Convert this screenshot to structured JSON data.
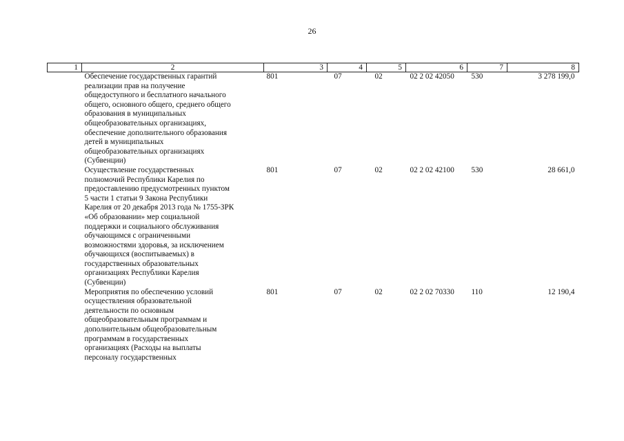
{
  "page": {
    "number": "26"
  },
  "table": {
    "headers": [
      "1",
      "2",
      "3",
      "4",
      "5",
      "6",
      "7",
      "8"
    ],
    "rows": [
      {
        "name_lines": [
          "Обеспечение государственных гарантий",
          "реализации прав на получение",
          "общедоступного и бесплатного начального",
          "общего, основного общего, среднего общего",
          "образования в муниципальных",
          "общеобразовательных организациях,",
          "обеспечение дополнительного образования",
          "детей в муниципальных",
          "общеобразовательных организациях",
          "(Субвенции)"
        ],
        "c3": "801",
        "c4": "07",
        "c5": "02",
        "c6": "02 2 02 42050",
        "c7": "530",
        "c8": "3 278 199,0"
      },
      {
        "name_lines": [
          "Осуществление государственных",
          "полномочий Республики Карелия по",
          "предоставлению предусмотренных пунктом",
          "5 части 1 статьи 9 Закона Республики",
          "Карелия от 20 декабря 2013 года № 1755-ЗРК",
          "«Об образовании» мер социальной",
          "поддержки и социального обслуживания",
          "обучающимся с ограниченными",
          "возможностями здоровья, за исключением",
          "обучающихся (воспитываемых) в",
          "государственных образовательных",
          "организациях Республики Карелия",
          "(Субвенции)"
        ],
        "c3": "801",
        "c4": "07",
        "c5": "02",
        "c6": "02 2 02 42100",
        "c7": "530",
        "c8": "28 661,0"
      },
      {
        "name_lines": [
          "Мероприятия  по обеспечению условий",
          "осуществления образовательной",
          "деятельности по основным",
          "общеобразовательным программам и",
          "дополнительным общеобразовательным",
          "программам в государственных",
          "организациях (Расходы на выплаты",
          "персоналу государственных"
        ],
        "c3": "801",
        "c4": "07",
        "c5": "02",
        "c6": "02 2 02 70330",
        "c7": "110",
        "c8": "12 190,4"
      }
    ]
  }
}
